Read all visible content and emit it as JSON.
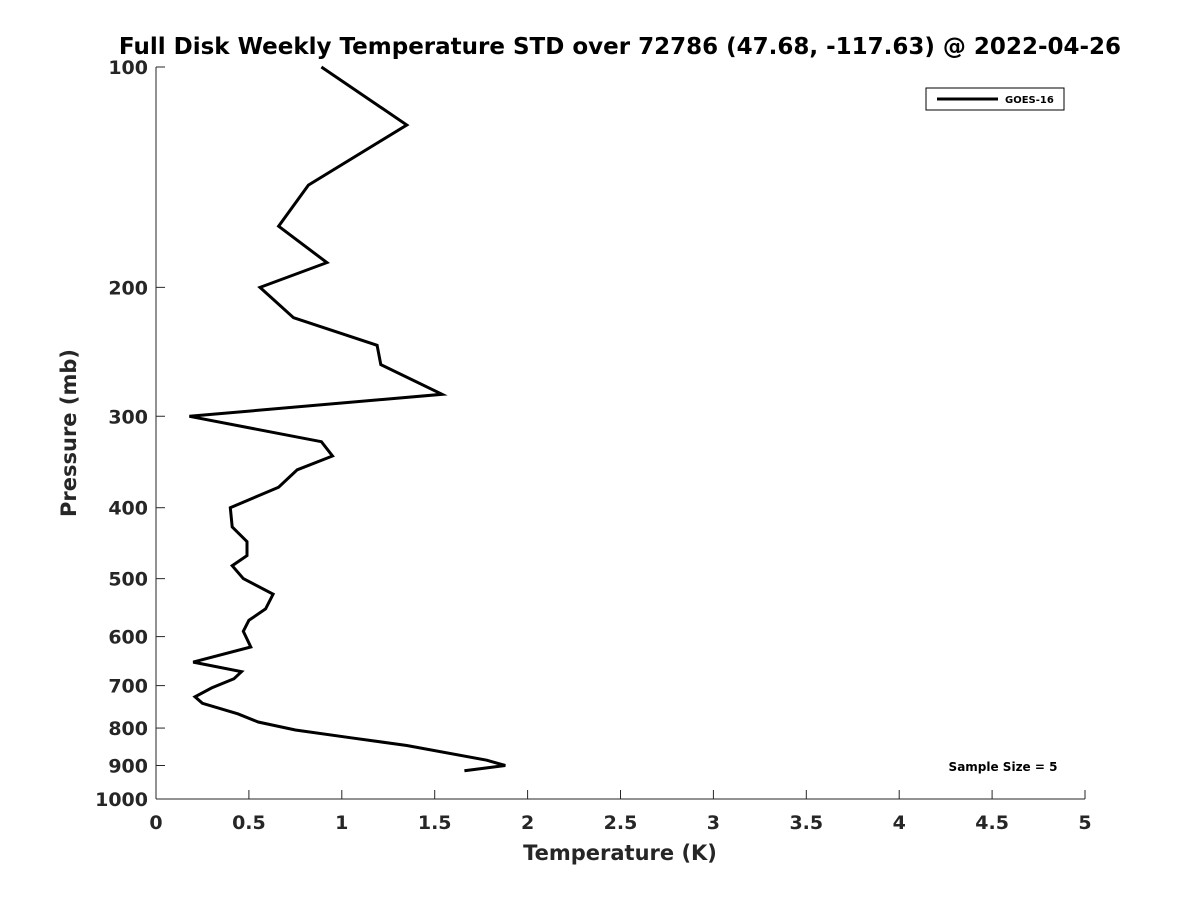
{
  "chart_data": {
    "type": "line",
    "title": "Full Disk Weekly Temperature STD over 72786 (47.68, -117.63) @ 2022-04-26",
    "xlabel": "Temperature (K)",
    "ylabel": "Pressure (mb)",
    "xlim": [
      0,
      5
    ],
    "ylim": [
      100,
      1000
    ],
    "yscale": "log",
    "y_reversed": true,
    "xticks": [
      0,
      0.5,
      1,
      1.5,
      2,
      2.5,
      3,
      3.5,
      4,
      4.5,
      5
    ],
    "xtick_labels": [
      "0",
      "0.5",
      "1",
      "1.5",
      "2",
      "2.5",
      "3",
      "3.5",
      "4",
      "4.5",
      "5"
    ],
    "yticks": [
      100,
      200,
      300,
      400,
      500,
      600,
      700,
      800,
      900,
      1000
    ],
    "ytick_labels": [
      "100",
      "200",
      "300",
      "400",
      "500",
      "600",
      "700",
      "800",
      "900",
      "1000"
    ],
    "grid": false,
    "legend_position": "top-right",
    "annotation": "Sample Size = 5",
    "series": [
      {
        "name": "GOES-16",
        "color": "#000000",
        "points": [
          {
            "x": 0.89,
            "y": 100
          },
          {
            "x": 1.35,
            "y": 120
          },
          {
            "x": 0.82,
            "y": 145
          },
          {
            "x": 0.66,
            "y": 165
          },
          {
            "x": 0.92,
            "y": 185
          },
          {
            "x": 0.56,
            "y": 200
          },
          {
            "x": 0.74,
            "y": 220
          },
          {
            "x": 1.19,
            "y": 240
          },
          {
            "x": 1.21,
            "y": 255
          },
          {
            "x": 1.54,
            "y": 280
          },
          {
            "x": 0.18,
            "y": 300
          },
          {
            "x": 0.89,
            "y": 325
          },
          {
            "x": 0.95,
            "y": 340
          },
          {
            "x": 0.76,
            "y": 355
          },
          {
            "x": 0.66,
            "y": 375
          },
          {
            "x": 0.4,
            "y": 400
          },
          {
            "x": 0.41,
            "y": 425
          },
          {
            "x": 0.49,
            "y": 445
          },
          {
            "x": 0.49,
            "y": 465
          },
          {
            "x": 0.41,
            "y": 480
          },
          {
            "x": 0.47,
            "y": 500
          },
          {
            "x": 0.63,
            "y": 525
          },
          {
            "x": 0.59,
            "y": 550
          },
          {
            "x": 0.5,
            "y": 570
          },
          {
            "x": 0.47,
            "y": 590
          },
          {
            "x": 0.51,
            "y": 620
          },
          {
            "x": 0.2,
            "y": 650
          },
          {
            "x": 0.46,
            "y": 670
          },
          {
            "x": 0.42,
            "y": 685
          },
          {
            "x": 0.3,
            "y": 705
          },
          {
            "x": 0.21,
            "y": 725
          },
          {
            "x": 0.25,
            "y": 740
          },
          {
            "x": 0.44,
            "y": 765
          },
          {
            "x": 0.55,
            "y": 785
          },
          {
            "x": 0.75,
            "y": 805
          },
          {
            "x": 1.05,
            "y": 825
          },
          {
            "x": 1.35,
            "y": 845
          },
          {
            "x": 1.78,
            "y": 885
          },
          {
            "x": 1.88,
            "y": 900
          },
          {
            "x": 1.66,
            "y": 915
          }
        ]
      }
    ]
  }
}
